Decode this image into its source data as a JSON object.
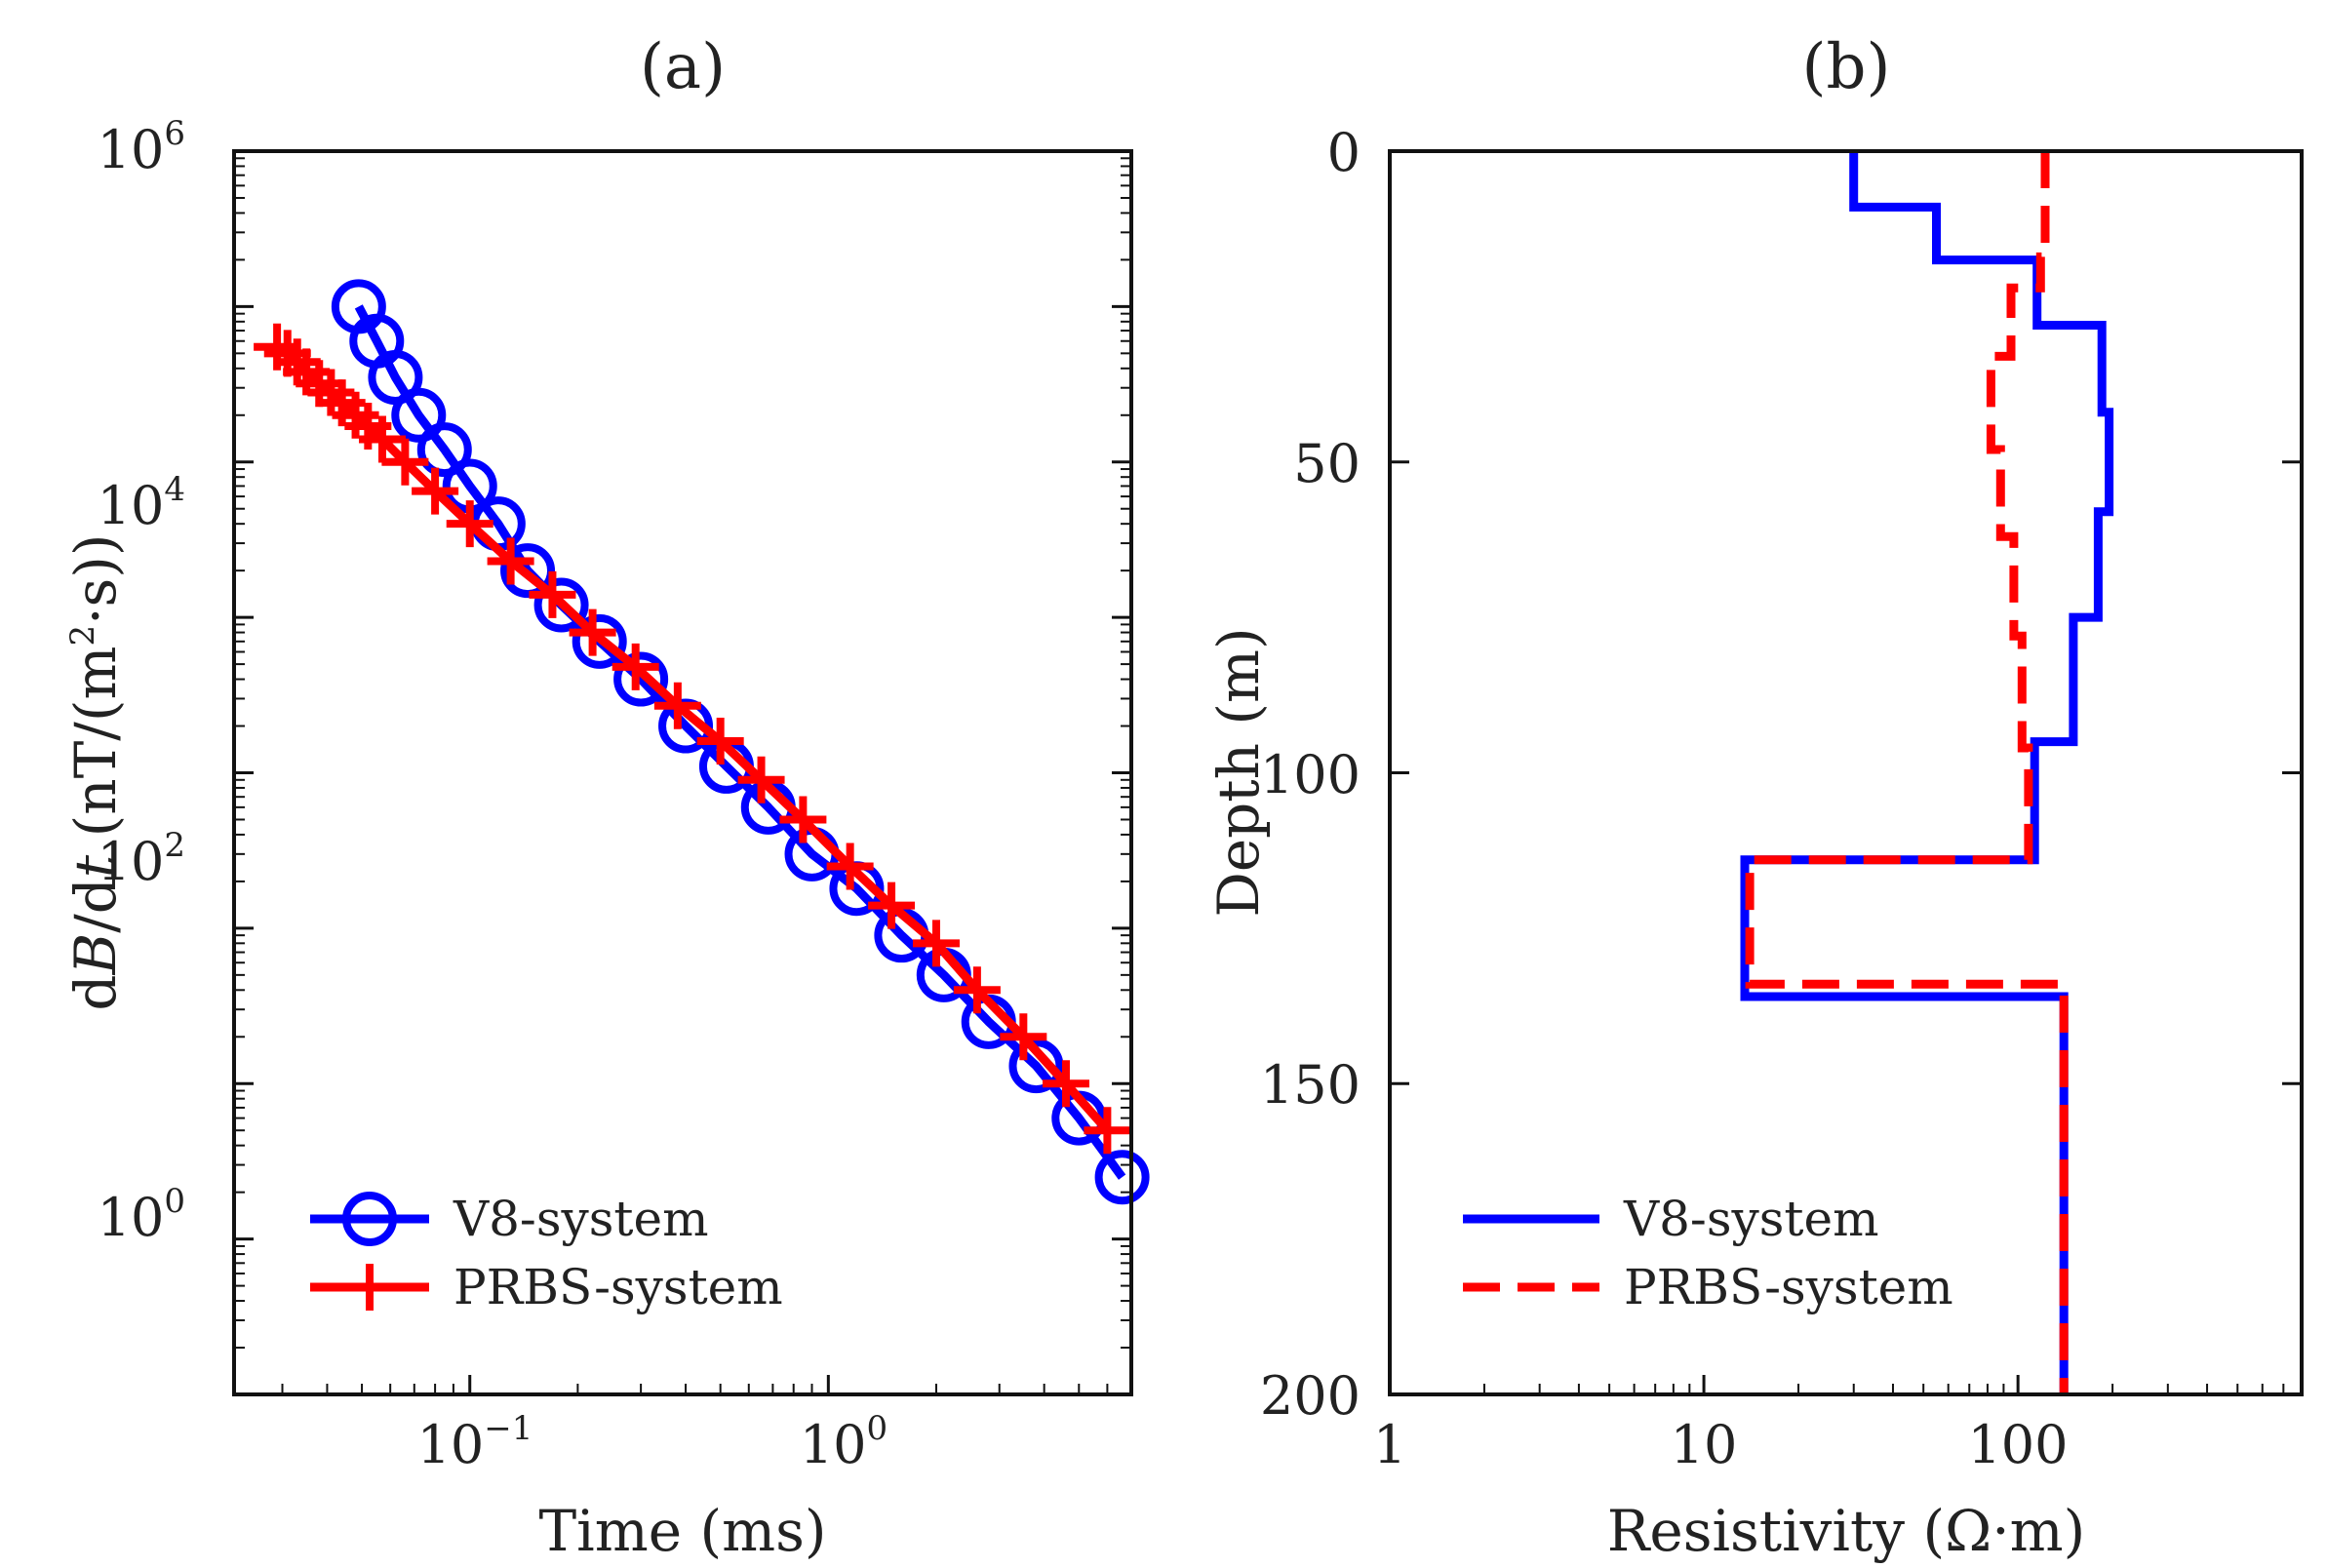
{
  "colors": {
    "v8": "#0000ff",
    "prbs": "#ff0000",
    "axis": "#111111"
  },
  "chart_data": [
    {
      "panel": "a",
      "title": "(a)",
      "type": "line",
      "xlabel": "Time (ms)",
      "ylabel": "dB/dt (nT/(m²·s))",
      "ylabel_parts": {
        "pre": "d",
        "b": "B",
        "mid": "/d",
        "t": "t",
        "units": " (nT/(m",
        "sup": "2",
        "tail": "·s))"
      },
      "xscale": "log",
      "yscale": "log",
      "xlim": [
        0.022,
        7.0
      ],
      "ylim": [
        0.01,
        1000000
      ],
      "xticks": [
        {
          "base": "10",
          "exp": "−1",
          "value": 0.1
        },
        {
          "base": "10",
          "exp": "0",
          "value": 1
        }
      ],
      "yticks": [
        {
          "base": "10",
          "exp": "0",
          "value": 1
        },
        {
          "base": "10",
          "exp": "2",
          "value": 100
        },
        {
          "base": "10",
          "exp": "4",
          "value": 10000
        },
        {
          "base": "10",
          "exp": "6",
          "value": 1000000
        }
      ],
      "legend_position": "bottom-left",
      "series": [
        {
          "name": "V8-system",
          "color": "#0000ff",
          "marker": "circle",
          "style": "solid",
          "x": [
            0.049,
            0.055,
            0.062,
            0.072,
            0.085,
            0.1,
            0.12,
            0.145,
            0.18,
            0.23,
            0.3,
            0.4,
            0.52,
            0.68,
            0.9,
            1.2,
            1.6,
            2.1,
            2.8,
            3.8,
            5.0,
            6.6
          ],
          "y": [
            100000,
            60000,
            35000,
            20000,
            12000,
            7000,
            4000,
            2000,
            1200,
            700,
            400,
            200,
            110,
            60,
            30,
            18,
            9,
            5,
            2.5,
            1.3,
            0.6,
            0.25
          ]
        },
        {
          "name": "PRBS-system",
          "color": "#ff0000",
          "marker": "plus",
          "style": "solid",
          "x": [
            0.029,
            0.031,
            0.033,
            0.035,
            0.038,
            0.041,
            0.044,
            0.048,
            0.052,
            0.057,
            0.066,
            0.08,
            0.1,
            0.13,
            0.17,
            0.22,
            0.29,
            0.38,
            0.5,
            0.65,
            0.85,
            1.15,
            1.5,
            2.0,
            2.6,
            3.5,
            4.6,
            6.0
          ],
          "y": [
            55000,
            50000,
            44000,
            38000,
            32000,
            28000,
            24000,
            20000,
            17000,
            14000,
            10000,
            6500,
            4000,
            2300,
            1400,
            800,
            480,
            270,
            160,
            90,
            50,
            25,
            14,
            8,
            4,
            2,
            1,
            0.5
          ]
        }
      ]
    },
    {
      "panel": "b",
      "title": "(b)",
      "type": "line",
      "xlabel": "Resistivity (Ω·m)",
      "ylabel": "Depth (m)",
      "xscale": "log",
      "yscale": "linear",
      "xlim": [
        1,
        800
      ],
      "ylim": [
        0,
        200
      ],
      "y_inverted": true,
      "xticks": [
        {
          "label": "1",
          "value": 1
        },
        {
          "label": "10",
          "value": 10
        },
        {
          "label": "100",
          "value": 100
        }
      ],
      "yticks": [
        {
          "label": "0",
          "value": 0
        },
        {
          "label": "50",
          "value": 50
        },
        {
          "label": "100",
          "value": 100
        },
        {
          "label": "150",
          "value": 150
        },
        {
          "label": "200",
          "value": 200
        }
      ],
      "legend_position": "bottom-left",
      "series": [
        {
          "name": "V8-system",
          "color": "#0000ff",
          "style": "solid",
          "resistivity": [
            30,
            30,
            55,
            55,
            115,
            115,
            185,
            185,
            195,
            195,
            180,
            180,
            150,
            150,
            113,
            113,
            13.5,
            13.5,
            140,
            140
          ],
          "depth": [
            0,
            9,
            9,
            17.5,
            17.5,
            28,
            28,
            42,
            42,
            58,
            58,
            75,
            75,
            95,
            95,
            114,
            114,
            136,
            136,
            200
          ]
        },
        {
          "name": "PRBS-system",
          "color": "#ff0000",
          "style": "dashed",
          "resistivity": [
            122,
            122,
            118,
            118,
            95,
            95,
            82,
            82,
            88,
            88,
            97,
            97,
            103,
            103,
            108,
            108,
            14,
            14,
            140,
            140
          ],
          "depth": [
            0,
            17,
            17,
            22,
            22,
            33,
            33,
            48,
            48,
            62,
            62,
            78,
            78,
            96,
            96,
            114,
            114,
            134,
            134,
            200
          ]
        }
      ]
    }
  ]
}
